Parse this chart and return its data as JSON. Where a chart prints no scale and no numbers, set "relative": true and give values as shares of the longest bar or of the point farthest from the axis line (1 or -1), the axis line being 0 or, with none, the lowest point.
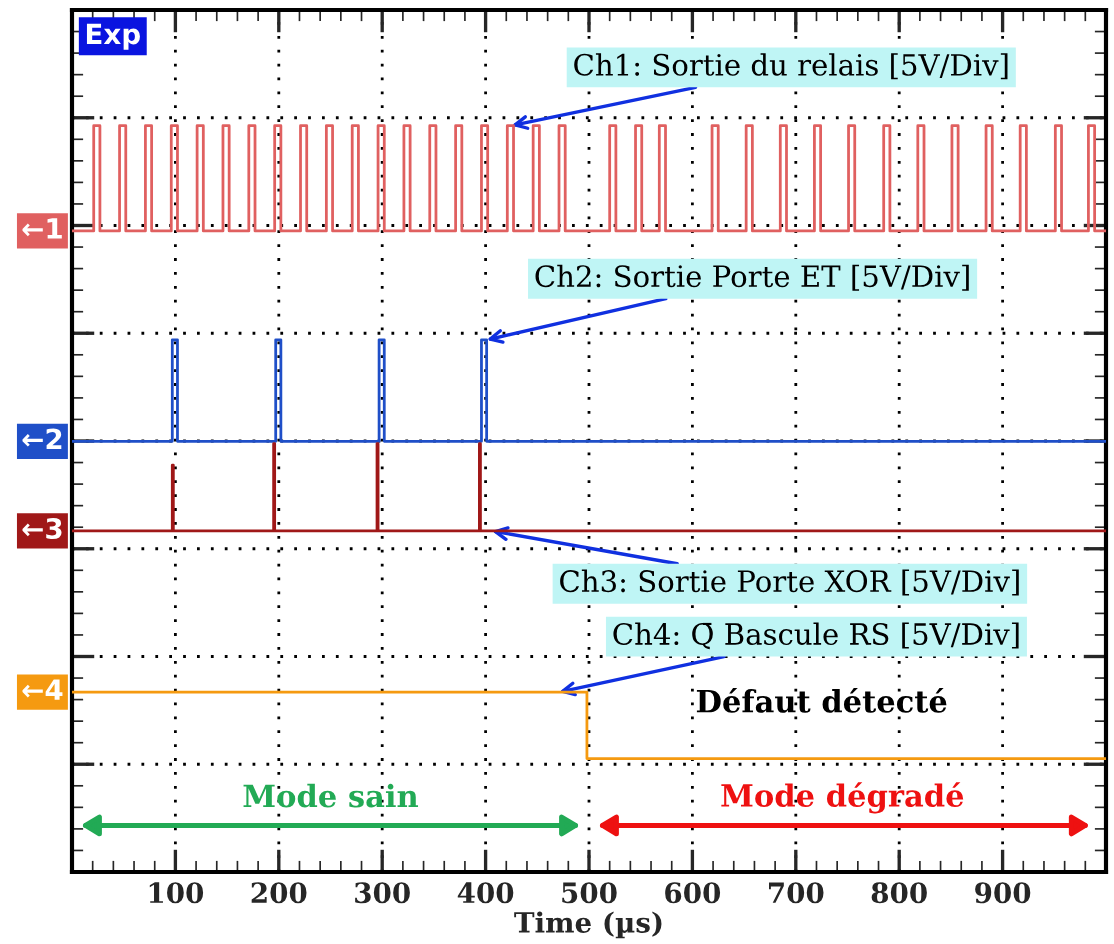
{
  "chart_data": {
    "type": "step",
    "relative": true,
    "xlabel": "Time (µs)",
    "xlim": [
      0,
      1000
    ],
    "xticks": [
      100,
      200,
      300,
      400,
      500,
      600,
      700,
      800,
      900
    ],
    "grid": true,
    "series": [
      {
        "name": "←1",
        "color": "#e06060",
        "x": [
          0,
          21,
          27,
          46,
          52,
          71,
          77,
          96,
          102,
          121,
          127,
          146,
          152,
          171,
          177,
          196,
          202,
          221,
          227,
          246,
          252,
          271,
          277,
          296,
          302,
          321,
          327,
          346,
          352,
          371,
          377,
          396,
          402,
          421,
          427,
          446,
          452,
          471,
          477,
          520,
          526,
          545,
          551,
          568,
          574,
          619,
          625,
          652,
          658,
          685,
          691,
          718,
          724,
          751,
          757,
          785,
          791,
          818,
          824,
          851,
          857,
          884,
          890,
          917,
          923,
          951,
          957,
          983,
          989,
          1000
        ],
        "values": [
          0.859,
          1,
          0.859,
          1,
          0.859,
          1,
          0.859,
          1,
          0.859,
          1,
          0.859,
          1,
          0.859,
          1,
          0.859,
          1,
          0.859,
          1,
          0.859,
          1,
          0.859,
          1,
          0.859,
          1,
          0.859,
          1,
          0.859,
          1,
          0.859,
          1,
          0.859,
          1,
          0.859,
          1,
          0.859,
          1,
          0.859,
          1,
          0.859,
          1,
          0.859,
          1,
          0.859,
          1,
          0.859,
          1,
          0.859,
          1,
          0.859,
          1,
          0.859,
          1,
          0.859,
          1,
          0.859,
          1,
          0.859,
          1,
          0.859,
          1,
          0.859,
          1,
          0.859,
          1,
          0.859,
          1,
          0.859,
          1,
          0.859,
          0.859
        ]
      },
      {
        "name": "←2",
        "color": "#1f4fc8",
        "x": [
          0,
          97,
          102,
          197,
          202,
          297,
          302,
          396,
          401,
          1000
        ],
        "values": [
          0.577,
          0.713,
          0.577,
          0.713,
          0.577,
          0.713,
          0.577,
          0.713,
          0.577,
          0.577
        ]
      },
      {
        "name": "←3",
        "color": "#a01818",
        "x": [
          0,
          97,
          98,
          195,
          196,
          295,
          296,
          394,
          395,
          1000
        ],
        "values": [
          0.457,
          0.545,
          0.457,
          0.574,
          0.457,
          0.574,
          0.457,
          0.574,
          0.457,
          0.457
        ]
      },
      {
        "name": "←4",
        "color": "#f59a10",
        "x": [
          0,
          498,
          1000
        ],
        "values": [
          0.241,
          0.152,
          0.152
        ]
      }
    ],
    "annotations": [
      "Exp",
      {
        "text": "Ch1: Sortie du relais [5V/Div]",
        "x": 425,
        "y": 1.0
      },
      {
        "text": "Ch2: Sortie Porte ET [5V/Div]",
        "x": 401,
        "y": 0.713
      },
      {
        "text": "Ch3: Sortie Porte XOR [5V/Div]",
        "x": 406,
        "y": 0.457
      },
      {
        "text": "Ch4: Q̄ Bascule RS [5V/Div]",
        "x": 471,
        "y": 0.241
      },
      "Défaut détecté",
      "Mode sain",
      "Mode dégradé"
    ]
  }
}
